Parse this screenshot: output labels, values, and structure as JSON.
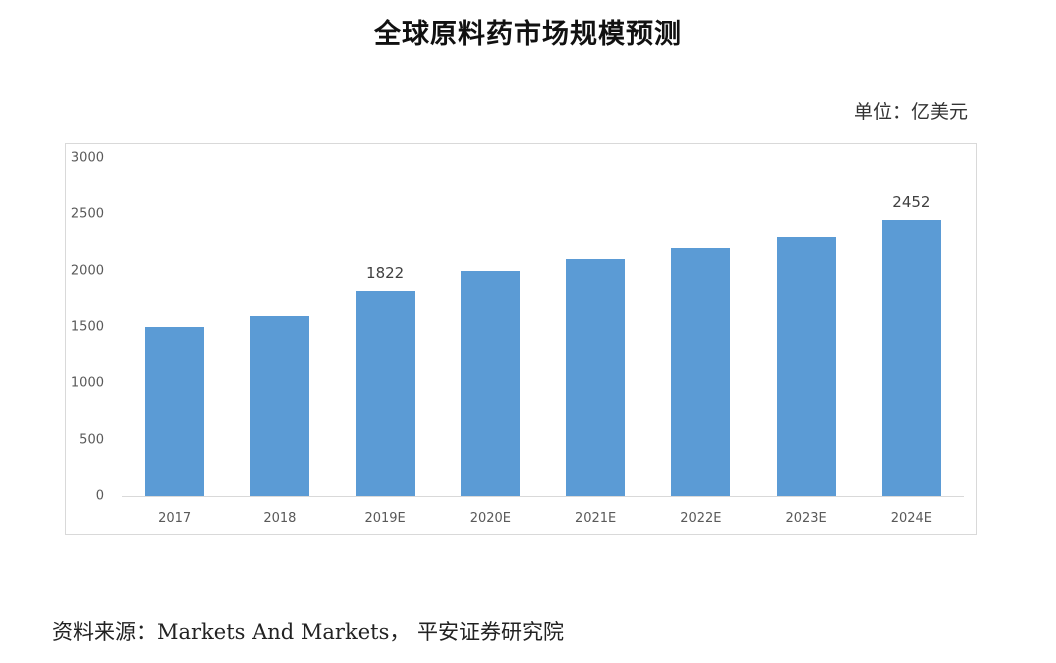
{
  "page": {
    "title": "全球原料药市场规模预测",
    "unit": "单位：亿美元",
    "source": "资料来源：Markets And Markets，  平安证券研究院"
  },
  "colors": {
    "bar": "#5b9bd5",
    "axis": "#d9d9d9",
    "text": "#595959"
  },
  "chart_data": {
    "type": "bar",
    "title": "全球原料药市场规模预测",
    "unit": "亿美元",
    "categories": [
      "2017",
      "2018",
      "2019E",
      "2020E",
      "2021E",
      "2022E",
      "2023E",
      "2024E"
    ],
    "values": [
      1500,
      1600,
      1822,
      2000,
      2100,
      2200,
      2300,
      2452
    ],
    "data_labels": [
      null,
      null,
      "1822",
      null,
      null,
      null,
      null,
      "2452"
    ],
    "xlabel": "",
    "ylabel": "",
    "ylim": [
      0,
      3000
    ],
    "yticks": [
      "0",
      "500",
      "1000",
      "1500",
      "2000",
      "2500",
      "3000"
    ],
    "grid": false,
    "legend": null
  }
}
